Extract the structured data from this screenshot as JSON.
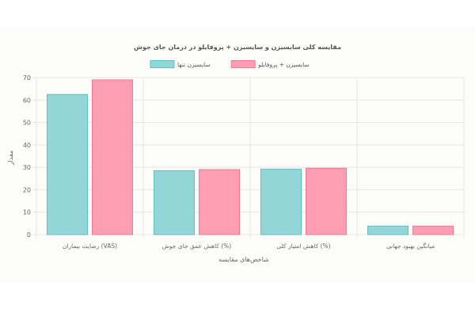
{
  "chart_data": {
    "type": "bar",
    "title": "مقایسه کلی سایسیزن و سایسیزن + پروفایلو در درمان جای جوش",
    "xlabel": "شاخص‌های مقایسه",
    "ylabel": "مقدار",
    "ylim": [
      0,
      70
    ],
    "yticks": [
      0,
      10,
      20,
      30,
      40,
      50,
      60,
      70
    ],
    "grid": true,
    "legend": "top-center",
    "categories": [
      "رضایت بیماران (VAS)",
      "کاهش عمق جای جوش (%)",
      "کاهش امتیاز کلی (%)",
      "میانگین بهبود جهانی"
    ],
    "series": [
      {
        "name": "سایسیزن تنها",
        "values": [
          62.5,
          28.5,
          29.2,
          3.8
        ],
        "color": "#93d6d8",
        "border": "#5fbfc2"
      },
      {
        "name": "سایسیزن + پروفایلو",
        "values": [
          69.0,
          29.0,
          29.6,
          3.8
        ],
        "color": "#fe9eb3",
        "border": "#f07a94"
      }
    ]
  }
}
